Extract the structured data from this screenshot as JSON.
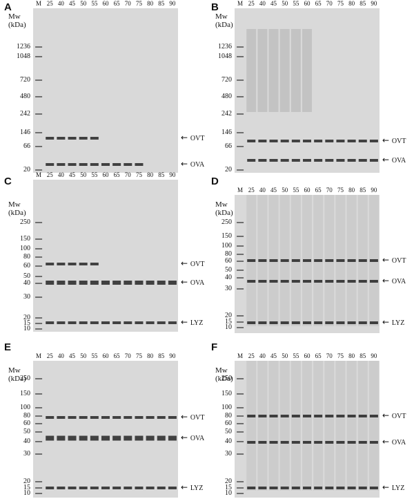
{
  "lane_labels": [
    "M",
    "25",
    "40",
    "45",
    "50",
    "55",
    "60",
    "65",
    "70",
    "75",
    "80",
    "85",
    "90"
  ],
  "mw_header": [
    "Mw",
    "(kDa)"
  ],
  "panels": [
    {
      "label": "A",
      "markers": [
        "1236",
        "1048",
        "720",
        "480",
        "242",
        "146",
        "66",
        "20"
      ],
      "bands": [
        {
          "text": "OVT"
        },
        {
          "text": "OVA"
        }
      ]
    },
    {
      "label": "B",
      "markers": [
        "1236",
        "1048",
        "720",
        "480",
        "242",
        "146",
        "66",
        "20"
      ],
      "bands": [
        {
          "text": "OVT"
        },
        {
          "text": "OVA"
        }
      ]
    },
    {
      "label": "C",
      "markers": [
        "250",
        "150",
        "100",
        "80",
        "60",
        "50",
        "40",
        "30",
        "20",
        "15",
        "10"
      ],
      "bands": [
        {
          "text": "OVT"
        },
        {
          "text": "OVA"
        },
        {
          "text": "LYZ"
        }
      ]
    },
    {
      "label": "D",
      "markers": [
        "250",
        "150",
        "100",
        "80",
        "60",
        "50",
        "40",
        "30",
        "20",
        "15",
        "10"
      ],
      "bands": [
        {
          "text": "OVT"
        },
        {
          "text": "OVA"
        },
        {
          "text": "LYZ"
        }
      ]
    },
    {
      "label": "E",
      "markers": [
        "250",
        "150",
        "100",
        "80",
        "60",
        "50",
        "40",
        "30",
        "20",
        "15",
        "10"
      ],
      "bands": [
        {
          "text": "OVT"
        },
        {
          "text": "OVA"
        },
        {
          "text": "LYZ"
        }
      ]
    },
    {
      "label": "F",
      "markers": [
        "250",
        "150",
        "100",
        "80",
        "60",
        "50",
        "40",
        "30",
        "20",
        "15",
        "10"
      ],
      "bands": [
        {
          "text": "OVT"
        },
        {
          "text": "OVA"
        },
        {
          "text": "LYZ"
        }
      ]
    }
  ],
  "colors": {
    "gel_background": "#d9d9d9",
    "band_dark": "#1a1a1a",
    "band_mid": "#6f6f6f"
  }
}
